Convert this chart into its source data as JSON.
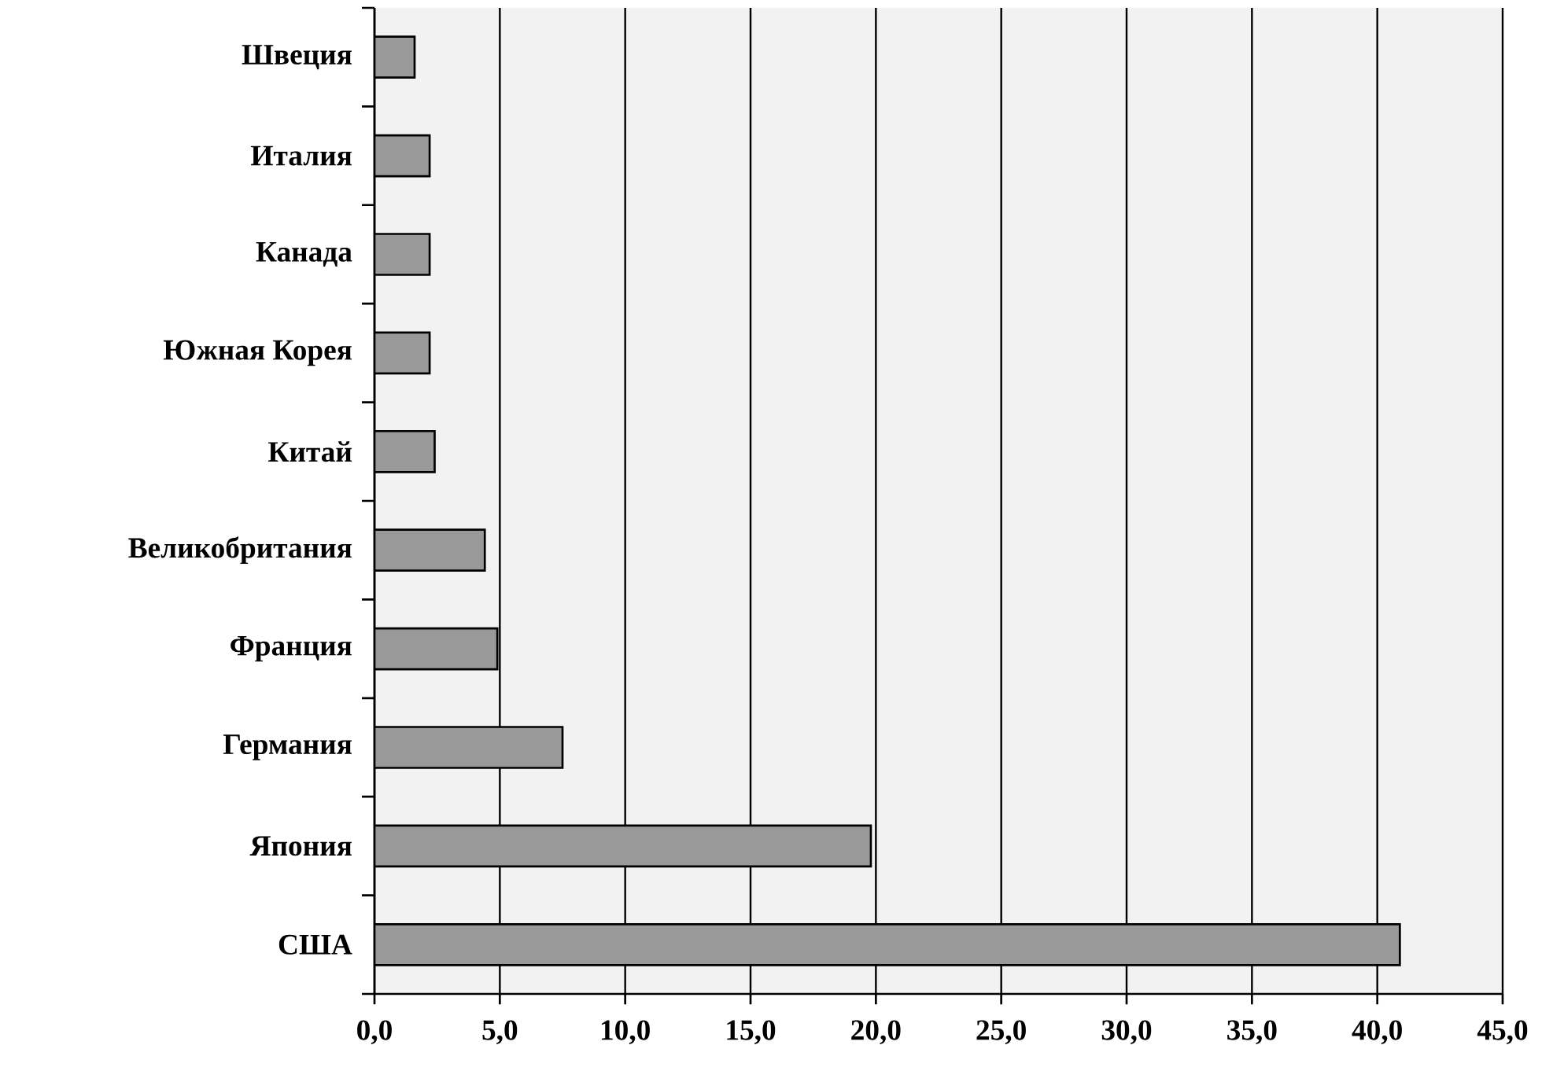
{
  "chart_data": {
    "type": "bar",
    "orientation": "horizontal",
    "categories": [
      "Швеция",
      "Италия",
      "Канада",
      "Южная Корея",
      "Китай",
      "Великобритания",
      "Франция",
      "Германия",
      "Япония",
      "США"
    ],
    "values": [
      1.6,
      2.2,
      2.2,
      2.2,
      2.4,
      4.4,
      4.9,
      7.5,
      19.8,
      40.9
    ],
    "color": "#999999",
    "xlim": [
      0,
      45
    ],
    "xticks": [
      {
        "value": 0,
        "label": "0,0"
      },
      {
        "value": 5,
        "label": "5,0"
      },
      {
        "value": 10,
        "label": "10,0"
      },
      {
        "value": 15,
        "label": "15,0"
      },
      {
        "value": 20,
        "label": "20,0"
      },
      {
        "value": 25,
        "label": "25,0"
      },
      {
        "value": 30,
        "label": "30,0"
      },
      {
        "value": 35,
        "label": "35,0"
      },
      {
        "value": 40,
        "label": "40,0"
      },
      {
        "value": 45,
        "label": "45,0"
      }
    ],
    "grid": "x"
  }
}
